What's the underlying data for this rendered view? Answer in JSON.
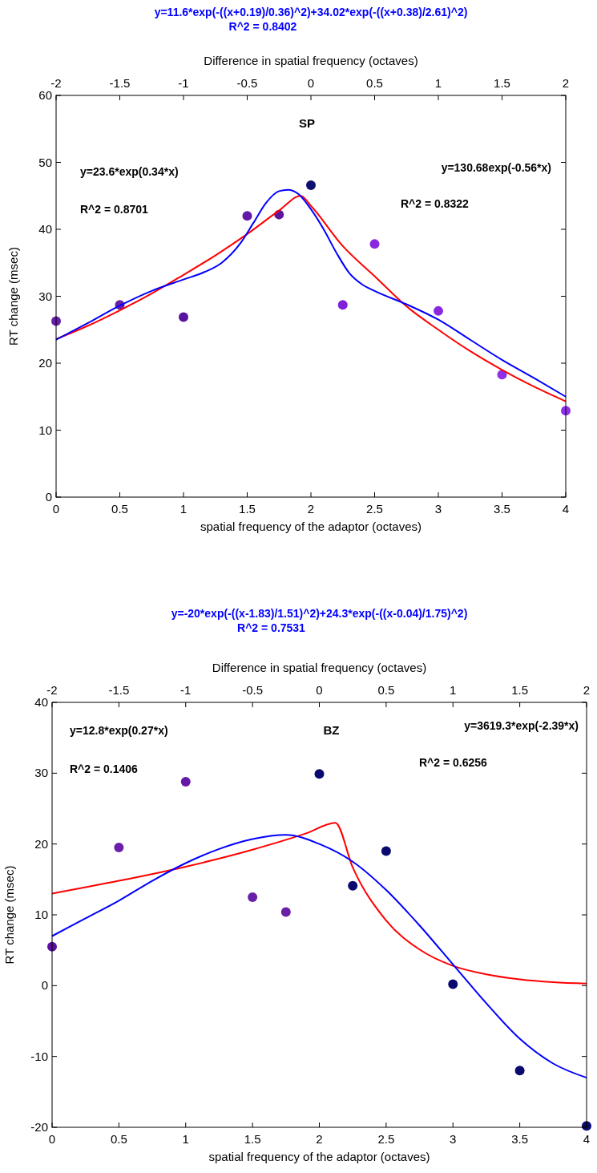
{
  "chart_data": [
    {
      "type": "scatter",
      "title": "SP",
      "xlabel": "spatial frequency of the adaptor (octaves)",
      "ylabel": "RT change (msec)",
      "x2label": "Difference in spatial frequency (octaves)",
      "xlim": [
        0,
        4
      ],
      "xticks": [
        0,
        0.5,
        1,
        1.5,
        2,
        2.5,
        3,
        3.5,
        4
      ],
      "x2lim": [
        -2,
        2
      ],
      "x2ticks": [
        -2,
        -1.5,
        -1,
        -0.5,
        0,
        0.5,
        1,
        1.5,
        2
      ],
      "ylim": [
        0,
        60
      ],
      "yticks": [
        0,
        10,
        20,
        30,
        40,
        50,
        60
      ],
      "annotations": [
        "y=11.6*exp(-((x+0.19)/0.36)^2)+34.02*exp(-((x+0.38)/2.61)^2)",
        "R^2 = 0.8402",
        "y=23.6*exp(0.34*x)",
        "R^2 = 0.8701",
        "y=130.68exp(-0.56*x)",
        "R^2 = 0.8322"
      ],
      "series": [
        {
          "marker": "circle",
          "x": [
            0,
            0.5,
            1,
            1.5,
            1.75,
            2,
            2.25,
            2.5,
            3,
            3.5,
            4
          ],
          "values": [
            26.3,
            28.7,
            26.9,
            42,
            42.2,
            46.6,
            28.7,
            37.8,
            27.8,
            18.3,
            12.9
          ],
          "colors": [
            "#6a1fa8",
            "#6a1fa8",
            "#5a13a0",
            "#6418a8",
            "#5c17a0",
            "#0f0f70",
            "#8020d8",
            "#8a28e0",
            "#8a28e0",
            "#9030e8",
            "#9030e8"
          ]
        },
        {
          "type": "line",
          "color": "#ff0000",
          "x": [
            0,
            0.25,
            0.5,
            0.75,
            1,
            1.25,
            1.5,
            1.75,
            1.92,
            2,
            2.25,
            2.5,
            2.75,
            3,
            3.25,
            3.5,
            3.75,
            4
          ],
          "values": [
            23.6,
            25.6,
            27.9,
            30.4,
            33.2,
            36.1,
            39.3,
            42.8,
            45,
            43.5,
            37.5,
            33,
            28.5,
            25,
            21.8,
            19,
            16.5,
            14.3
          ]
        },
        {
          "type": "line",
          "color": "#0000ff",
          "x": [
            0,
            0.25,
            0.5,
            0.75,
            1,
            1.15,
            1.3,
            1.45,
            1.55,
            1.65,
            1.75,
            1.82,
            1.9,
            2,
            2.1,
            2.2,
            2.3,
            2.4,
            2.5,
            2.75,
            3,
            3.25,
            3.5,
            3.75,
            4
          ],
          "values": [
            23.5,
            26,
            28.6,
            30.8,
            32.5,
            33.5,
            35,
            38,
            41,
            44,
            45.7,
            45.9,
            45.3,
            43,
            40,
            36.5,
            33.5,
            31.8,
            30.8,
            28.8,
            26.5,
            23.5,
            20.5,
            17.8,
            15
          ]
        }
      ]
    },
    {
      "type": "scatter",
      "title": "BZ",
      "xlabel": "spatial frequency of the adaptor (octaves)",
      "ylabel": "RT change (msec)",
      "x2label": "Difference in spatial frequency (octaves)",
      "xlim": [
        0,
        4
      ],
      "xticks": [
        0,
        0.5,
        1,
        1.5,
        2,
        2.5,
        3,
        3.5,
        4
      ],
      "x2lim": [
        -2,
        2
      ],
      "x2ticks": [
        -2,
        -1.5,
        -1,
        -0.5,
        0,
        0.5,
        1,
        1.5,
        2
      ],
      "ylim": [
        -20,
        40
      ],
      "yticks": [
        -20,
        -10,
        0,
        10,
        20,
        30,
        40
      ],
      "annotations": [
        "y=-20*exp(-((x-1.83)/1.51)^2)+24.3*exp(-((x-0.04)/1.75)^2)",
        "R^2 = 0.7531",
        "y=12.8*exp(0.27*x)",
        "R^2 = 0.1406",
        "y=3619.3*exp(-2.39*x)",
        "R^2 = 0.6256"
      ],
      "series": [
        {
          "marker": "circle",
          "x": [
            0,
            0.5,
            1,
            1.5,
            1.75,
            2,
            2.25,
            2.5,
            3,
            3.5,
            4
          ],
          "values": [
            5.5,
            19.5,
            28.8,
            12.5,
            10.4,
            29.9,
            14.1,
            19,
            0.2,
            -12,
            -19.8
          ],
          "colors": [
            "#5a0fa0",
            "#6a1fa8",
            "#6418a8",
            "#6a1fa8",
            "#6a1fa8",
            "#0a0a6e",
            "#0a0a6e",
            "#0a0a6e",
            "#0a0a6e",
            "#0a0a6e",
            "#0a0a6e"
          ]
        },
        {
          "type": "line",
          "color": "#ff0000",
          "x": [
            0,
            0.5,
            1,
            1.5,
            1.9,
            2.12,
            2.25,
            2.5,
            2.75,
            3,
            3.25,
            3.5,
            3.75,
            4
          ],
          "values": [
            13,
            14.8,
            16.8,
            19.2,
            21.5,
            23,
            16.7,
            9.2,
            5.1,
            2.8,
            1.6,
            0.9,
            0.5,
            0.3
          ]
        },
        {
          "type": "line",
          "color": "#0000ff",
          "x": [
            0,
            0.25,
            0.5,
            0.75,
            1,
            1.25,
            1.5,
            1.75,
            2,
            2.25,
            2.5,
            2.75,
            3,
            3.25,
            3.5,
            3.75,
            4
          ],
          "values": [
            7,
            9.5,
            12,
            14.8,
            17.3,
            19.3,
            20.7,
            21.3,
            20,
            17.5,
            13.5,
            8.5,
            3,
            -2.5,
            -7.5,
            -11,
            -13
          ]
        }
      ]
    }
  ]
}
